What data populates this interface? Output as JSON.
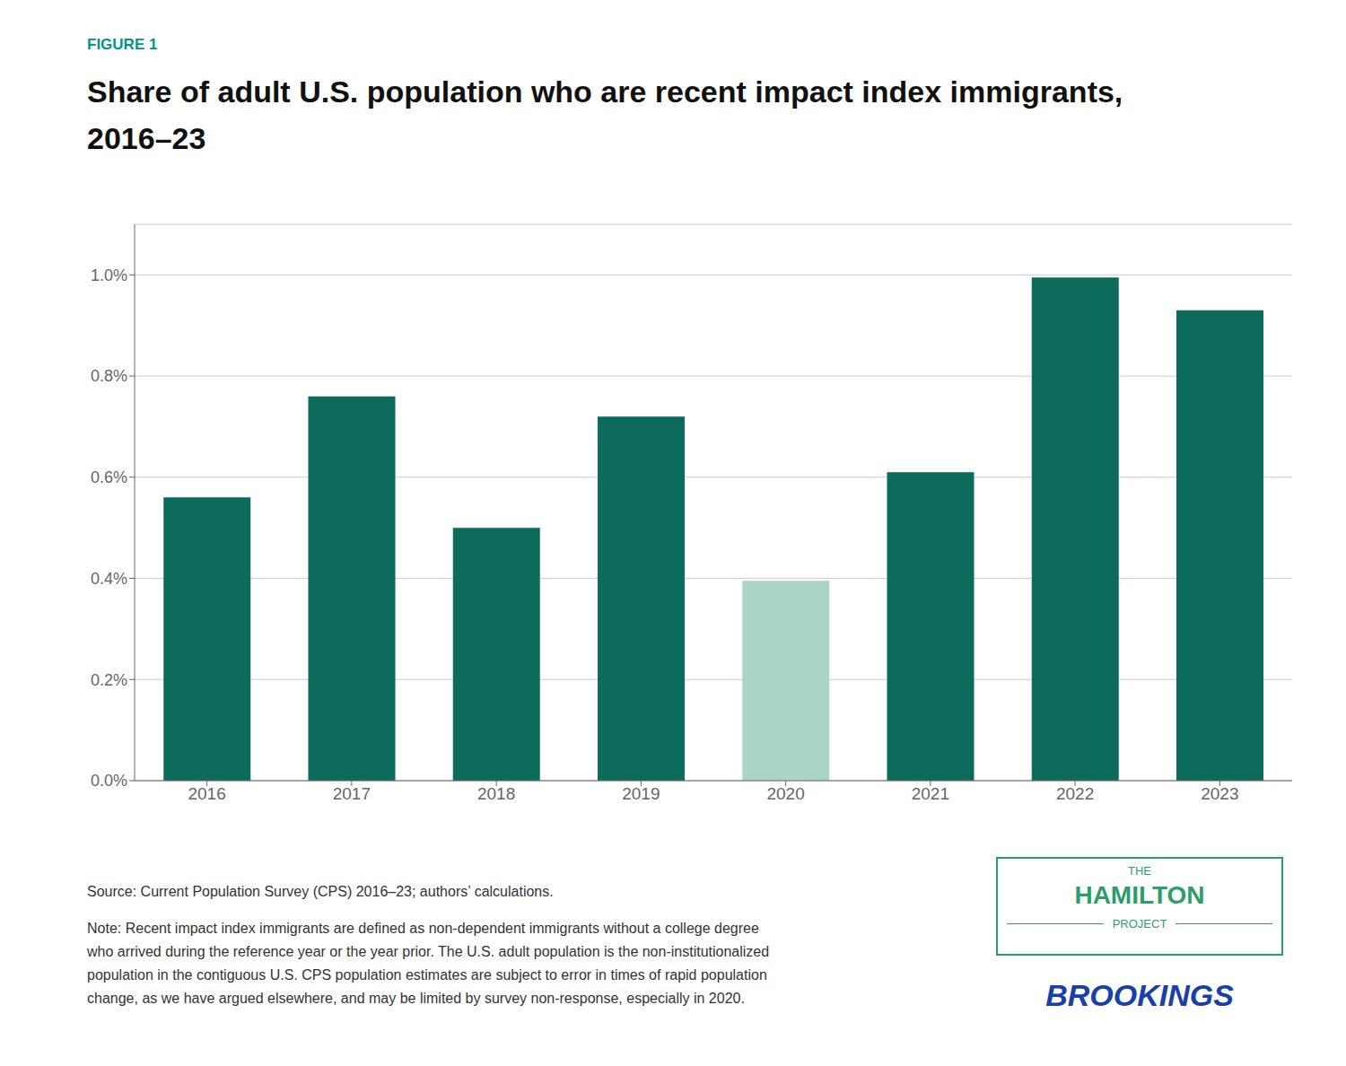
{
  "chart_data": {
    "type": "bar",
    "title": "Share of adult U.S. population who are recent impact index immigrants,\n2016–23",
    "categories": [
      "2016",
      "2017",
      "2018",
      "2019",
      "2020",
      "2021",
      "2022",
      "2023"
    ],
    "values": [
      0.0056,
      0.0076,
      0.005,
      0.0072,
      0.00395,
      0.0061,
      0.00995,
      0.0093
    ],
    "colors": [
      "#0d6b5c",
      "#0d6b5c",
      "#0d6b5c",
      "#0d6b5c",
      "#a8d5c5",
      "#0d6b5c",
      "#0d6b5c",
      "#0d6b5c"
    ],
    "ylim": [
      0,
      0.011
    ],
    "yticks": [
      {
        "value": 0.0,
        "label": "0.0%"
      },
      {
        "value": 0.002,
        "label": "0.2%"
      },
      {
        "value": 0.004,
        "label": "0.4%"
      },
      {
        "value": 0.006,
        "label": "0.6%"
      },
      {
        "value": 0.008,
        "label": "0.8%"
      },
      {
        "value": 0.01,
        "label": "1.0%"
      }
    ],
    "grid": true,
    "annotations": [
      {
        "text": "FIGURE 1",
        "color": "#009688"
      },
      {
        "text": "Source: Current Population Survey (CPS) 2016–23; authors’ calculations.",
        "color": "#333333"
      },
      {
        "text": "Note: Recent impact index immigrants are defined as non-dependent immigrants without a college degree\nwho arrived during the reference year or the year prior. The U.S. adult population is the non-institutionalized\npopulation in the contiguous U.S. CPS population estimates are subject to error in times of rapid population\nchange, as we have argued elsewhere, and may be limited by survey non-response, especially in 2020.",
        "color": "#333333"
      },
      {
        "text": "THE",
        "color": "#2d9e6b"
      },
      {
        "text": "HAMILTON",
        "color": "#2d9e6b"
      },
      {
        "text": "PROJECT",
        "color": "#2d9e6b"
      },
      {
        "text": "BROOKINGS",
        "color": "#1a3fa8"
      }
    ]
  }
}
